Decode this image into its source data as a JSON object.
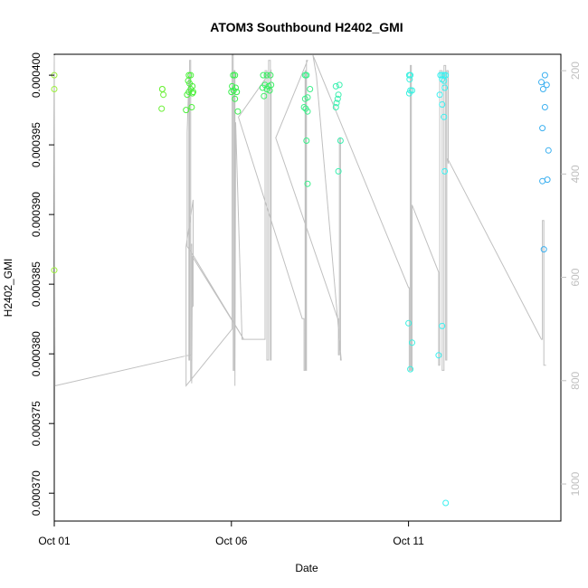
{
  "chart_data": {
    "type": "scatter",
    "title": "ATOM3 Southbound H2402_GMI",
    "xlabel": "Date",
    "ylabel": "H2402_GMI",
    "xlim": [
      0.0,
      14.3
    ],
    "ylim": [
      0.000368,
      0.0004015
    ],
    "x_ticks": [
      {
        "value": 0,
        "label": "Oct 01"
      },
      {
        "value": 5,
        "label": "Oct 06"
      },
      {
        "value": 10,
        "label": "Oct 11"
      }
    ],
    "y_ticks": [
      {
        "value": 0.00037,
        "label": "0.000370"
      },
      {
        "value": 0.000375,
        "label": "0.000375"
      },
      {
        "value": 0.00038,
        "label": "0.000380"
      },
      {
        "value": 0.000385,
        "label": "0.000385"
      },
      {
        "value": 0.00039,
        "label": "0.000390"
      },
      {
        "value": 0.000395,
        "label": "0.000395"
      },
      {
        "value": 0.0004,
        "label": "0.000400"
      }
    ],
    "y2lim": [
      168.25,
      1071.75
    ],
    "y2_ticks": [
      {
        "value": 200,
        "label": "200"
      },
      {
        "value": 400,
        "label": "400"
      },
      {
        "value": 600,
        "label": "600"
      },
      {
        "value": 800,
        "label": "800"
      },
      {
        "value": 1000,
        "label": "1000"
      }
    ],
    "grid": false,
    "points": [
      {
        "x": 0.0,
        "y": 0.0004,
        "color": "#9cf03b"
      },
      {
        "x": 0.0,
        "y": 0.000399,
        "color": "#9cf03b"
      },
      {
        "x": 0.0,
        "y": 0.000386,
        "color": "#9cf03b"
      },
      {
        "x": 3.05,
        "y": 0.000399,
        "color": "#6ef03b"
      },
      {
        "x": 3.05,
        "y": 0.000399,
        "color": "#6ef03b"
      },
      {
        "x": 3.08,
        "y": 0.0003986,
        "color": "#6ef03b"
      },
      {
        "x": 3.03,
        "y": 0.0003976,
        "color": "#6ef03b"
      },
      {
        "x": 3.8,
        "y": 0.0004,
        "color": "#4cf03b"
      },
      {
        "x": 3.85,
        "y": 0.0004,
        "color": "#4cf03b"
      },
      {
        "x": 3.78,
        "y": 0.0003996,
        "color": "#4cf03b"
      },
      {
        "x": 3.82,
        "y": 0.0003994,
        "color": "#4cf03b"
      },
      {
        "x": 3.9,
        "y": 0.0003992,
        "color": "#4cf03b"
      },
      {
        "x": 3.85,
        "y": 0.000399,
        "color": "#4cf03b"
      },
      {
        "x": 3.92,
        "y": 0.0003988,
        "color": "#4cf03b"
      },
      {
        "x": 3.8,
        "y": 0.0003988,
        "color": "#4cf03b"
      },
      {
        "x": 3.75,
        "y": 0.0003986,
        "color": "#4cf03b"
      },
      {
        "x": 3.9,
        "y": 0.0003987,
        "color": "#4cf03b"
      },
      {
        "x": 3.88,
        "y": 0.0003977,
        "color": "#4cf03b"
      },
      {
        "x": 3.72,
        "y": 0.0003975,
        "color": "#4cf03b"
      },
      {
        "x": 5.05,
        "y": 0.0004,
        "color": "#3bf04f"
      },
      {
        "x": 5.1,
        "y": 0.0004,
        "color": "#3bf04f"
      },
      {
        "x": 5.02,
        "y": 0.0003992,
        "color": "#3bf04f"
      },
      {
        "x": 5.12,
        "y": 0.0003991,
        "color": "#3bf04f"
      },
      {
        "x": 5.06,
        "y": 0.0003989,
        "color": "#3bf04f"
      },
      {
        "x": 5.15,
        "y": 0.0003988,
        "color": "#3bf04f"
      },
      {
        "x": 5.0,
        "y": 0.0003988,
        "color": "#3bf04f"
      },
      {
        "x": 5.1,
        "y": 0.0003983,
        "color": "#3bf04f"
      },
      {
        "x": 5.18,
        "y": 0.0003974,
        "color": "#3bf04f"
      },
      {
        "x": 5.9,
        "y": 0.0004,
        "color": "#3bf065"
      },
      {
        "x": 6.0,
        "y": 0.0004,
        "color": "#3bf065"
      },
      {
        "x": 6.1,
        "y": 0.0004,
        "color": "#3bf065"
      },
      {
        "x": 5.95,
        "y": 0.0003993,
        "color": "#3bf065"
      },
      {
        "x": 6.05,
        "y": 0.0003992,
        "color": "#3bf065"
      },
      {
        "x": 6.12,
        "y": 0.0003993,
        "color": "#3bf065"
      },
      {
        "x": 5.88,
        "y": 0.0003991,
        "color": "#3bf065"
      },
      {
        "x": 6.0,
        "y": 0.000399,
        "color": "#3bf065"
      },
      {
        "x": 6.08,
        "y": 0.0003989,
        "color": "#3bf065"
      },
      {
        "x": 5.92,
        "y": 0.0003985,
        "color": "#3bf065"
      },
      {
        "x": 7.08,
        "y": 0.0004,
        "color": "#3bf08a"
      },
      {
        "x": 7.12,
        "y": 0.0004,
        "color": "#3bf08a"
      },
      {
        "x": 7.22,
        "y": 0.000399,
        "color": "#3bf08a"
      },
      {
        "x": 7.15,
        "y": 0.0003984,
        "color": "#3bf08a"
      },
      {
        "x": 7.08,
        "y": 0.0003983,
        "color": "#3bf08a"
      },
      {
        "x": 7.05,
        "y": 0.0003977,
        "color": "#3bf08a"
      },
      {
        "x": 7.1,
        "y": 0.0003976,
        "color": "#3bf08a"
      },
      {
        "x": 7.15,
        "y": 0.0003974,
        "color": "#3bf08a"
      },
      {
        "x": 7.12,
        "y": 0.0003953,
        "color": "#3bf08a"
      },
      {
        "x": 7.15,
        "y": 0.0003922,
        "color": "#3bf08a"
      },
      {
        "x": 7.95,
        "y": 0.0003992,
        "color": "#3bf0b0"
      },
      {
        "x": 8.05,
        "y": 0.0003993,
        "color": "#3bf0b0"
      },
      {
        "x": 8.02,
        "y": 0.0003986,
        "color": "#3bf0b0"
      },
      {
        "x": 8.0,
        "y": 0.0003983,
        "color": "#3bf0b0"
      },
      {
        "x": 7.97,
        "y": 0.000398,
        "color": "#3bf0b0"
      },
      {
        "x": 7.95,
        "y": 0.0003977,
        "color": "#3bf0b0"
      },
      {
        "x": 8.08,
        "y": 0.0003953,
        "color": "#3bf0b0"
      },
      {
        "x": 8.02,
        "y": 0.0003931,
        "color": "#3bf0b0"
      },
      {
        "x": 10.02,
        "y": 0.0004,
        "color": "#3bf0e0"
      },
      {
        "x": 10.05,
        "y": 0.0004,
        "color": "#3bf0e0"
      },
      {
        "x": 10.03,
        "y": 0.0003997,
        "color": "#3bf0e0"
      },
      {
        "x": 10.1,
        "y": 0.0003989,
        "color": "#3bf0e0"
      },
      {
        "x": 10.05,
        "y": 0.0003989,
        "color": "#3bf0e0"
      },
      {
        "x": 10.02,
        "y": 0.0003987,
        "color": "#3bf0e0"
      },
      {
        "x": 10.0,
        "y": 0.0003822,
        "color": "#3bf0e0"
      },
      {
        "x": 10.1,
        "y": 0.0003808,
        "color": "#3bf0e0"
      },
      {
        "x": 10.05,
        "y": 0.0003789,
        "color": "#3bf0e0"
      },
      {
        "x": 10.9,
        "y": 0.0004,
        "color": "#3bf0f0"
      },
      {
        "x": 10.95,
        "y": 0.0004,
        "color": "#3bf0f0"
      },
      {
        "x": 11.0,
        "y": 0.0004,
        "color": "#3bf0f0"
      },
      {
        "x": 11.05,
        "y": 0.0004,
        "color": "#3bf0f0"
      },
      {
        "x": 10.95,
        "y": 0.0003997,
        "color": "#3bf0f0"
      },
      {
        "x": 11.0,
        "y": 0.0003996,
        "color": "#3bf0f0"
      },
      {
        "x": 11.02,
        "y": 0.0003991,
        "color": "#3bf0f0"
      },
      {
        "x": 10.88,
        "y": 0.0003986,
        "color": "#3bf0f0"
      },
      {
        "x": 10.95,
        "y": 0.0003979,
        "color": "#3bf0f0"
      },
      {
        "x": 11.0,
        "y": 0.000397,
        "color": "#3bf0f0"
      },
      {
        "x": 11.02,
        "y": 0.0003931,
        "color": "#3bf0f0"
      },
      {
        "x": 10.95,
        "y": 0.000382,
        "color": "#3bf0f0"
      },
      {
        "x": 10.85,
        "y": 0.0003799,
        "color": "#3bf0f0"
      },
      {
        "x": 11.05,
        "y": 0.0003693,
        "color": "#3bf0f0"
      },
      {
        "x": 13.85,
        "y": 0.0004,
        "color": "#3bb0f0"
      },
      {
        "x": 13.75,
        "y": 0.0003995,
        "color": "#3bb0f0"
      },
      {
        "x": 13.9,
        "y": 0.0003993,
        "color": "#3bb0f0"
      },
      {
        "x": 13.8,
        "y": 0.000399,
        "color": "#3bb0f0"
      },
      {
        "x": 13.85,
        "y": 0.0003977,
        "color": "#3bb0f0"
      },
      {
        "x": 13.78,
        "y": 0.0003962,
        "color": "#3bb0f0"
      },
      {
        "x": 13.95,
        "y": 0.0003946,
        "color": "#3bb0f0"
      },
      {
        "x": 13.92,
        "y": 0.0003925,
        "color": "#3bb0f0"
      },
      {
        "x": 13.78,
        "y": 0.0003924,
        "color": "#3bb0f0"
      },
      {
        "x": 13.82,
        "y": 0.0003875,
        "color": "#3bb0f0"
      }
    ],
    "line_series": {
      "color": "#c0c0c0",
      "points": [
        [
          0.0,
          170
        ],
        [
          0.02,
          810
        ],
        [
          3.85,
          750
        ],
        [
          3.85,
          800
        ],
        [
          3.85,
          540
        ],
        [
          3.88,
          535
        ],
        [
          3.88,
          805
        ],
        [
          3.9,
          560
        ],
        [
          5.35,
          720
        ],
        [
          3.9,
          555
        ],
        [
          3.75,
          540
        ],
        [
          3.75,
          320
        ],
        [
          3.8,
          210
        ],
        [
          3.8,
          760
        ],
        [
          3.82,
          760
        ],
        [
          3.82,
          180
        ],
        [
          3.85,
          180
        ],
        [
          3.85,
          760
        ],
        [
          3.88,
          760
        ],
        [
          3.88,
          660
        ],
        [
          3.92,
          655
        ],
        [
          3.92,
          450
        ],
        [
          3.72,
          540
        ],
        [
          3.72,
          810
        ],
        [
          5.02,
          700
        ],
        [
          5.02,
          170
        ],
        [
          5.05,
          170
        ],
        [
          5.05,
          780
        ],
        [
          5.08,
          780
        ],
        [
          5.08,
          200
        ],
        [
          5.1,
          200
        ],
        [
          5.1,
          810
        ],
        [
          5.12,
          300
        ],
        [
          5.3,
          720
        ],
        [
          5.95,
          720
        ],
        [
          5.95,
          200
        ],
        [
          6.0,
          200
        ],
        [
          6.0,
          760
        ],
        [
          6.05,
          760
        ],
        [
          6.05,
          180
        ],
        [
          6.1,
          180
        ],
        [
          6.1,
          760
        ],
        [
          6.12,
          760
        ],
        [
          6.12,
          200
        ],
        [
          5.2,
          290
        ],
        [
          7.0,
          680
        ],
        [
          7.05,
          680
        ],
        [
          7.05,
          780
        ],
        [
          7.08,
          780
        ],
        [
          7.08,
          200
        ],
        [
          7.1,
          200
        ],
        [
          7.1,
          780
        ],
        [
          7.12,
          780
        ],
        [
          7.12,
          180
        ],
        [
          7.15,
          180
        ],
        [
          6.25,
          330
        ],
        [
          8.0,
          680
        ],
        [
          8.02,
          680
        ],
        [
          8.02,
          750
        ],
        [
          8.05,
          750
        ],
        [
          8.05,
          330
        ],
        [
          8.08,
          330
        ],
        [
          8.08,
          760
        ],
        [
          8.1,
          760
        ],
        [
          7.4,
          210
        ],
        [
          7.3,
          170
        ],
        [
          10.0,
          620
        ],
        [
          10.02,
          620
        ],
        [
          10.02,
          780
        ],
        [
          10.05,
          780
        ],
        [
          10.05,
          190
        ],
        [
          10.08,
          190
        ],
        [
          10.08,
          780
        ],
        [
          10.1,
          780
        ],
        [
          10.1,
          460
        ],
        [
          10.85,
          590
        ],
        [
          10.85,
          770
        ],
        [
          10.88,
          770
        ],
        [
          10.88,
          200
        ],
        [
          10.95,
          200
        ],
        [
          10.95,
          780
        ],
        [
          11.0,
          780
        ],
        [
          11.0,
          190
        ],
        [
          11.05,
          190
        ],
        [
          11.05,
          760
        ],
        [
          11.08,
          760
        ],
        [
          11.08,
          200
        ],
        [
          11.12,
          200
        ],
        [
          11.12,
          380
        ],
        [
          11.1,
          370
        ],
        [
          13.75,
          720
        ],
        [
          13.78,
          720
        ],
        [
          13.78,
          490
        ],
        [
          13.82,
          490
        ],
        [
          13.82,
          770
        ],
        [
          13.88,
          770
        ],
        [
          13.88,
          770
        ]
      ]
    }
  }
}
